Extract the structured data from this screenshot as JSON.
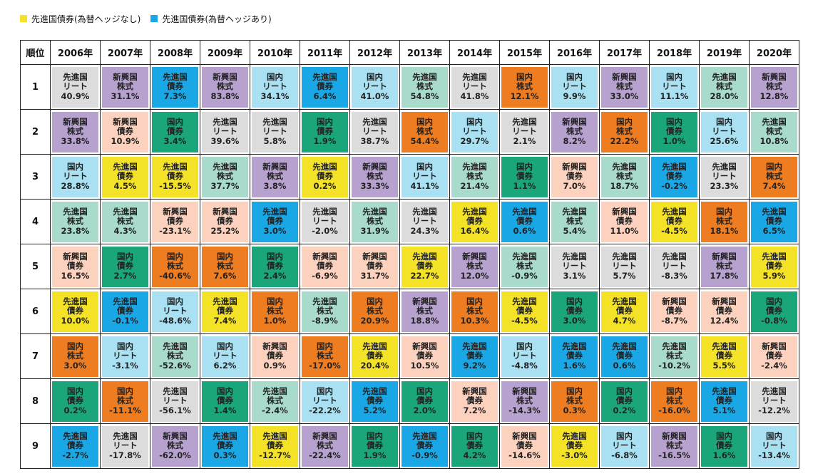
{
  "legend": [
    {
      "label": "先進国債券(為替ヘッジなし)",
      "color": "#f4e227"
    },
    {
      "label": "先進国債券(為替ヘッジあり)",
      "color": "#1aa7e6"
    }
  ],
  "colors": {
    "dev_reit": "#dcdcdc",
    "em_equity": "#b6a1cf",
    "dev_bond_unhedged": "#f4e227",
    "dev_bond_hedged": "#1aa7e6",
    "jp_reit": "#a9e1f2",
    "jp_equity": "#ee7d22",
    "dev_equity": "#a8dbcc",
    "em_bond": "#fcd2bf",
    "jp_bond": "#1aa67a"
  },
  "table": {
    "rank_header": "順位",
    "years": [
      "2006年",
      "2007年",
      "2008年",
      "2009年",
      "2010年",
      "2011年",
      "2012年",
      "2013年",
      "2014年",
      "2015年",
      "2016年",
      "2017年",
      "2018年",
      "2019年",
      "2020年"
    ],
    "ranks": [
      "1",
      "2",
      "3",
      "4",
      "5",
      "6",
      "7",
      "8",
      "9"
    ]
  },
  "chart_data": {
    "type": "table",
    "columns": [
      "2006年",
      "2007年",
      "2008年",
      "2009年",
      "2010年",
      "2011年",
      "2012年",
      "2013年",
      "2014年",
      "2015年",
      "2016年",
      "2017年",
      "2018年",
      "2019年",
      "2020年"
    ],
    "rows": [
      [
        {
          "l1": "先進国",
          "l2": "リート",
          "value": "40.9%",
          "key": "dev_reit"
        },
        {
          "l1": "新興国",
          "l2": "株式",
          "value": "31.1%",
          "key": "em_equity"
        },
        {
          "l1": "先進国",
          "l2": "債券",
          "value": "7.3%",
          "key": "dev_bond_hedged"
        },
        {
          "l1": "新興国",
          "l2": "株式",
          "value": "83.8%",
          "key": "em_equity"
        },
        {
          "l1": "国内",
          "l2": "リート",
          "value": "34.1%",
          "key": "jp_reit"
        },
        {
          "l1": "先進国",
          "l2": "債券",
          "value": "6.4%",
          "key": "dev_bond_hedged"
        },
        {
          "l1": "国内",
          "l2": "リート",
          "value": "41.0%",
          "key": "jp_reit"
        },
        {
          "l1": "先進国",
          "l2": "株式",
          "value": "54.8%",
          "key": "dev_equity"
        },
        {
          "l1": "先進国",
          "l2": "リート",
          "value": "41.8%",
          "key": "dev_reit"
        },
        {
          "l1": "国内",
          "l2": "株式",
          "value": "12.1%",
          "key": "jp_equity"
        },
        {
          "l1": "国内",
          "l2": "リート",
          "value": "9.9%",
          "key": "jp_reit"
        },
        {
          "l1": "新興国",
          "l2": "株式",
          "value": "33.0%",
          "key": "em_equity"
        },
        {
          "l1": "国内",
          "l2": "リート",
          "value": "11.1%",
          "key": "jp_reit"
        },
        {
          "l1": "先進国",
          "l2": "株式",
          "value": "28.0%",
          "key": "dev_equity"
        },
        {
          "l1": "新興国",
          "l2": "株式",
          "value": "12.8%",
          "key": "em_equity"
        }
      ],
      [
        {
          "l1": "新興国",
          "l2": "株式",
          "value": "33.8%",
          "key": "em_equity"
        },
        {
          "l1": "新興国",
          "l2": "債券",
          "value": "10.9%",
          "key": "em_bond"
        },
        {
          "l1": "国内",
          "l2": "債券",
          "value": "3.4%",
          "key": "jp_bond"
        },
        {
          "l1": "先進国",
          "l2": "リート",
          "value": "39.6%",
          "key": "dev_reit"
        },
        {
          "l1": "先進国",
          "l2": "リート",
          "value": "5.8%",
          "key": "dev_reit"
        },
        {
          "l1": "国内",
          "l2": "債券",
          "value": "1.9%",
          "key": "jp_bond"
        },
        {
          "l1": "先進国",
          "l2": "リート",
          "value": "38.7%",
          "key": "dev_reit"
        },
        {
          "l1": "国内",
          "l2": "株式",
          "value": "54.4%",
          "key": "jp_equity"
        },
        {
          "l1": "国内",
          "l2": "リート",
          "value": "29.7%",
          "key": "jp_reit"
        },
        {
          "l1": "先進国",
          "l2": "リート",
          "value": "2.1%",
          "key": "dev_reit"
        },
        {
          "l1": "新興国",
          "l2": "株式",
          "value": "8.2%",
          "key": "em_equity"
        },
        {
          "l1": "国内",
          "l2": "株式",
          "value": "22.2%",
          "key": "jp_equity"
        },
        {
          "l1": "国内",
          "l2": "債券",
          "value": "1.0%",
          "key": "jp_bond"
        },
        {
          "l1": "国内",
          "l2": "リート",
          "value": "25.6%",
          "key": "jp_reit"
        },
        {
          "l1": "先進国",
          "l2": "株式",
          "value": "10.8%",
          "key": "dev_equity"
        }
      ],
      [
        {
          "l1": "国内",
          "l2": "リート",
          "value": "28.8%",
          "key": "jp_reit"
        },
        {
          "l1": "先進国",
          "l2": "債券",
          "value": "4.5%",
          "key": "dev_bond_unhedged"
        },
        {
          "l1": "先進国",
          "l2": "債券",
          "value": "-15.5%",
          "key": "dev_bond_unhedged"
        },
        {
          "l1": "先進国",
          "l2": "株式",
          "value": "37.7%",
          "key": "dev_equity"
        },
        {
          "l1": "新興国",
          "l2": "株式",
          "value": "3.8%",
          "key": "em_equity"
        },
        {
          "l1": "先進国",
          "l2": "債券",
          "value": "0.2%",
          "key": "dev_bond_unhedged"
        },
        {
          "l1": "新興国",
          "l2": "株式",
          "value": "33.3%",
          "key": "em_equity"
        },
        {
          "l1": "国内",
          "l2": "リート",
          "value": "41.1%",
          "key": "jp_reit"
        },
        {
          "l1": "先進国",
          "l2": "株式",
          "value": "21.4%",
          "key": "dev_equity"
        },
        {
          "l1": "国内",
          "l2": "債券",
          "value": "1.1%",
          "key": "jp_bond"
        },
        {
          "l1": "新興国",
          "l2": "債券",
          "value": "7.0%",
          "key": "em_bond"
        },
        {
          "l1": "先進国",
          "l2": "株式",
          "value": "18.7%",
          "key": "dev_equity"
        },
        {
          "l1": "先進国",
          "l2": "債券",
          "value": "-0.2%",
          "key": "dev_bond_hedged"
        },
        {
          "l1": "先進国",
          "l2": "リート",
          "value": "23.3%",
          "key": "dev_reit"
        },
        {
          "l1": "国内",
          "l2": "株式",
          "value": "7.4%",
          "key": "jp_equity"
        }
      ],
      [
        {
          "l1": "先進国",
          "l2": "株式",
          "value": "23.8%",
          "key": "dev_equity"
        },
        {
          "l1": "先進国",
          "l2": "株式",
          "value": "4.3%",
          "key": "dev_equity"
        },
        {
          "l1": "新興国",
          "l2": "債券",
          "value": "-23.1%",
          "key": "em_bond"
        },
        {
          "l1": "新興国",
          "l2": "債券",
          "value": "25.2%",
          "key": "em_bond"
        },
        {
          "l1": "先進国",
          "l2": "債券",
          "value": "3.0%",
          "key": "dev_bond_hedged"
        },
        {
          "l1": "先進国",
          "l2": "リート",
          "value": "-2.0%",
          "key": "dev_reit"
        },
        {
          "l1": "先進国",
          "l2": "株式",
          "value": "31.9%",
          "key": "dev_equity"
        },
        {
          "l1": "先進国",
          "l2": "リート",
          "value": "24.3%",
          "key": "dev_reit"
        },
        {
          "l1": "先進国",
          "l2": "債券",
          "value": "16.4%",
          "key": "dev_bond_unhedged"
        },
        {
          "l1": "先進国",
          "l2": "債券",
          "value": "0.6%",
          "key": "dev_bond_hedged"
        },
        {
          "l1": "先進国",
          "l2": "株式",
          "value": "5.4%",
          "key": "dev_equity"
        },
        {
          "l1": "新興国",
          "l2": "債券",
          "value": "11.0%",
          "key": "em_bond"
        },
        {
          "l1": "先進国",
          "l2": "債券",
          "value": "-4.5%",
          "key": "dev_bond_unhedged"
        },
        {
          "l1": "国内",
          "l2": "株式",
          "value": "18.1%",
          "key": "jp_equity"
        },
        {
          "l1": "先進国",
          "l2": "債券",
          "value": "6.5%",
          "key": "dev_bond_hedged"
        }
      ],
      [
        {
          "l1": "新興国",
          "l2": "債券",
          "value": "16.5%",
          "key": "em_bond"
        },
        {
          "l1": "国内",
          "l2": "債券",
          "value": "2.7%",
          "key": "jp_bond"
        },
        {
          "l1": "国内",
          "l2": "株式",
          "value": "-40.6%",
          "key": "jp_equity"
        },
        {
          "l1": "国内",
          "l2": "株式",
          "value": "7.6%",
          "key": "jp_equity"
        },
        {
          "l1": "国内",
          "l2": "債券",
          "value": "2.4%",
          "key": "jp_bond"
        },
        {
          "l1": "新興国",
          "l2": "債券",
          "value": "-6.9%",
          "key": "em_bond"
        },
        {
          "l1": "新興国",
          "l2": "債券",
          "value": "31.7%",
          "key": "em_bond"
        },
        {
          "l1": "先進国",
          "l2": "債券",
          "value": "22.7%",
          "key": "dev_bond_unhedged"
        },
        {
          "l1": "新興国",
          "l2": "株式",
          "value": "12.0%",
          "key": "em_equity"
        },
        {
          "l1": "先進国",
          "l2": "株式",
          "value": "-0.9%",
          "key": "dev_equity"
        },
        {
          "l1": "先進国",
          "l2": "リート",
          "value": "3.1%",
          "key": "dev_reit"
        },
        {
          "l1": "先進国",
          "l2": "リート",
          "value": "5.7%",
          "key": "dev_reit"
        },
        {
          "l1": "先進国",
          "l2": "リート",
          "value": "-8.3%",
          "key": "dev_reit"
        },
        {
          "l1": "新興国",
          "l2": "株式",
          "value": "17.8%",
          "key": "em_equity"
        },
        {
          "l1": "先進国",
          "l2": "債券",
          "value": "5.9%",
          "key": "dev_bond_unhedged"
        }
      ],
      [
        {
          "l1": "先進国",
          "l2": "債券",
          "value": "10.0%",
          "key": "dev_bond_unhedged"
        },
        {
          "l1": "先進国",
          "l2": "債券",
          "value": "-0.1%",
          "key": "dev_bond_hedged"
        },
        {
          "l1": "国内",
          "l2": "リート",
          "value": "-48.6%",
          "key": "jp_reit"
        },
        {
          "l1": "先進国",
          "l2": "債券",
          "value": "7.4%",
          "key": "dev_bond_unhedged"
        },
        {
          "l1": "国内",
          "l2": "株式",
          "value": "1.0%",
          "key": "jp_equity"
        },
        {
          "l1": "先進国",
          "l2": "株式",
          "value": "-8.9%",
          "key": "dev_equity"
        },
        {
          "l1": "国内",
          "l2": "株式",
          "value": "20.9%",
          "key": "jp_equity"
        },
        {
          "l1": "新興国",
          "l2": "株式",
          "value": "18.8%",
          "key": "em_equity"
        },
        {
          "l1": "国内",
          "l2": "株式",
          "value": "10.3%",
          "key": "jp_equity"
        },
        {
          "l1": "先進国",
          "l2": "債券",
          "value": "-4.5%",
          "key": "dev_bond_unhedged"
        },
        {
          "l1": "国内",
          "l2": "債券",
          "value": "3.0%",
          "key": "jp_bond"
        },
        {
          "l1": "先進国",
          "l2": "債券",
          "value": "4.7%",
          "key": "dev_bond_unhedged"
        },
        {
          "l1": "新興国",
          "l2": "債券",
          "value": "-8.7%",
          "key": "em_bond"
        },
        {
          "l1": "新興国",
          "l2": "債券",
          "value": "12.4%",
          "key": "em_bond"
        },
        {
          "l1": "国内",
          "l2": "債券",
          "value": "-0.8%",
          "key": "jp_bond"
        }
      ],
      [
        {
          "l1": "国内",
          "l2": "株式",
          "value": "3.0%",
          "key": "jp_equity"
        },
        {
          "l1": "国内",
          "l2": "リート",
          "value": "-3.1%",
          "key": "jp_reit"
        },
        {
          "l1": "先進国",
          "l2": "株式",
          "value": "-52.6%",
          "key": "dev_equity"
        },
        {
          "l1": "国内",
          "l2": "リート",
          "value": "6.2%",
          "key": "jp_reit"
        },
        {
          "l1": "新興国",
          "l2": "債券",
          "value": "0.9%",
          "key": "em_bond"
        },
        {
          "l1": "国内",
          "l2": "株式",
          "value": "-17.0%",
          "key": "jp_equity"
        },
        {
          "l1": "先進国",
          "l2": "債券",
          "value": "20.4%",
          "key": "dev_bond_unhedged"
        },
        {
          "l1": "新興国",
          "l2": "債券",
          "value": "10.5%",
          "key": "em_bond"
        },
        {
          "l1": "先進国",
          "l2": "債券",
          "value": "9.2%",
          "key": "dev_bond_hedged"
        },
        {
          "l1": "国内",
          "l2": "リート",
          "value": "-4.8%",
          "key": "jp_reit"
        },
        {
          "l1": "先進国",
          "l2": "債券",
          "value": "1.6%",
          "key": "dev_bond_hedged"
        },
        {
          "l1": "先進国",
          "l2": "債券",
          "value": "0.6%",
          "key": "dev_bond_hedged"
        },
        {
          "l1": "先進国",
          "l2": "株式",
          "value": "-10.2%",
          "key": "dev_equity"
        },
        {
          "l1": "先進国",
          "l2": "債券",
          "value": "5.5%",
          "key": "dev_bond_unhedged"
        },
        {
          "l1": "新興国",
          "l2": "債券",
          "value": "-2.4%",
          "key": "em_bond"
        }
      ],
      [
        {
          "l1": "国内",
          "l2": "債券",
          "value": "0.2%",
          "key": "jp_bond"
        },
        {
          "l1": "国内",
          "l2": "株式",
          "value": "-11.1%",
          "key": "jp_equity"
        },
        {
          "l1": "先進国",
          "l2": "リート",
          "value": "-56.1%",
          "key": "dev_reit"
        },
        {
          "l1": "国内",
          "l2": "債券",
          "value": "1.4%",
          "key": "jp_bond"
        },
        {
          "l1": "先進国",
          "l2": "株式",
          "value": "-2.4%",
          "key": "dev_equity"
        },
        {
          "l1": "国内",
          "l2": "リート",
          "value": "-22.2%",
          "key": "jp_reit"
        },
        {
          "l1": "先進国",
          "l2": "債券",
          "value": "5.2%",
          "key": "dev_bond_hedged"
        },
        {
          "l1": "国内",
          "l2": "債券",
          "value": "2.0%",
          "key": "jp_bond"
        },
        {
          "l1": "新興国",
          "l2": "債券",
          "value": "7.2%",
          "key": "em_bond"
        },
        {
          "l1": "新興国",
          "l2": "株式",
          "value": "-14.3%",
          "key": "em_equity"
        },
        {
          "l1": "国内",
          "l2": "株式",
          "value": "0.3%",
          "key": "jp_equity"
        },
        {
          "l1": "国内",
          "l2": "債券",
          "value": "0.2%",
          "key": "jp_bond"
        },
        {
          "l1": "国内",
          "l2": "株式",
          "value": "-16.0%",
          "key": "jp_equity"
        },
        {
          "l1": "先進国",
          "l2": "債券",
          "value": "5.1%",
          "key": "dev_bond_hedged"
        },
        {
          "l1": "先進国",
          "l2": "リート",
          "value": "-12.2%",
          "key": "dev_reit"
        }
      ],
      [
        {
          "l1": "先進国",
          "l2": "債券",
          "value": "-2.7%",
          "key": "dev_bond_hedged"
        },
        {
          "l1": "先進国",
          "l2": "リート",
          "value": "-17.8%",
          "key": "dev_reit"
        },
        {
          "l1": "新興国",
          "l2": "株式",
          "value": "-62.0%",
          "key": "em_equity"
        },
        {
          "l1": "先進国",
          "l2": "債券",
          "value": "0.3%",
          "key": "dev_bond_hedged"
        },
        {
          "l1": "先進国",
          "l2": "債券",
          "value": "-12.7%",
          "key": "dev_bond_unhedged"
        },
        {
          "l1": "新興国",
          "l2": "株式",
          "value": "-22.4%",
          "key": "em_equity"
        },
        {
          "l1": "国内",
          "l2": "債券",
          "value": "1.9%",
          "key": "jp_bond"
        },
        {
          "l1": "先進国",
          "l2": "債券",
          "value": "-0.9%",
          "key": "dev_bond_hedged"
        },
        {
          "l1": "国内",
          "l2": "債券",
          "value": "4.2%",
          "key": "jp_bond"
        },
        {
          "l1": "新興国",
          "l2": "債券",
          "value": "-14.6%",
          "key": "em_bond"
        },
        {
          "l1": "先進国",
          "l2": "債券",
          "value": "-3.0%",
          "key": "dev_bond_unhedged"
        },
        {
          "l1": "国内",
          "l2": "リート",
          "value": "-6.8%",
          "key": "jp_reit"
        },
        {
          "l1": "新興国",
          "l2": "株式",
          "value": "-16.5%",
          "key": "em_equity"
        },
        {
          "l1": "国内",
          "l2": "債券",
          "value": "1.6%",
          "key": "jp_bond"
        },
        {
          "l1": "国内",
          "l2": "リート",
          "value": "-13.4%",
          "key": "jp_reit"
        }
      ]
    ]
  }
}
